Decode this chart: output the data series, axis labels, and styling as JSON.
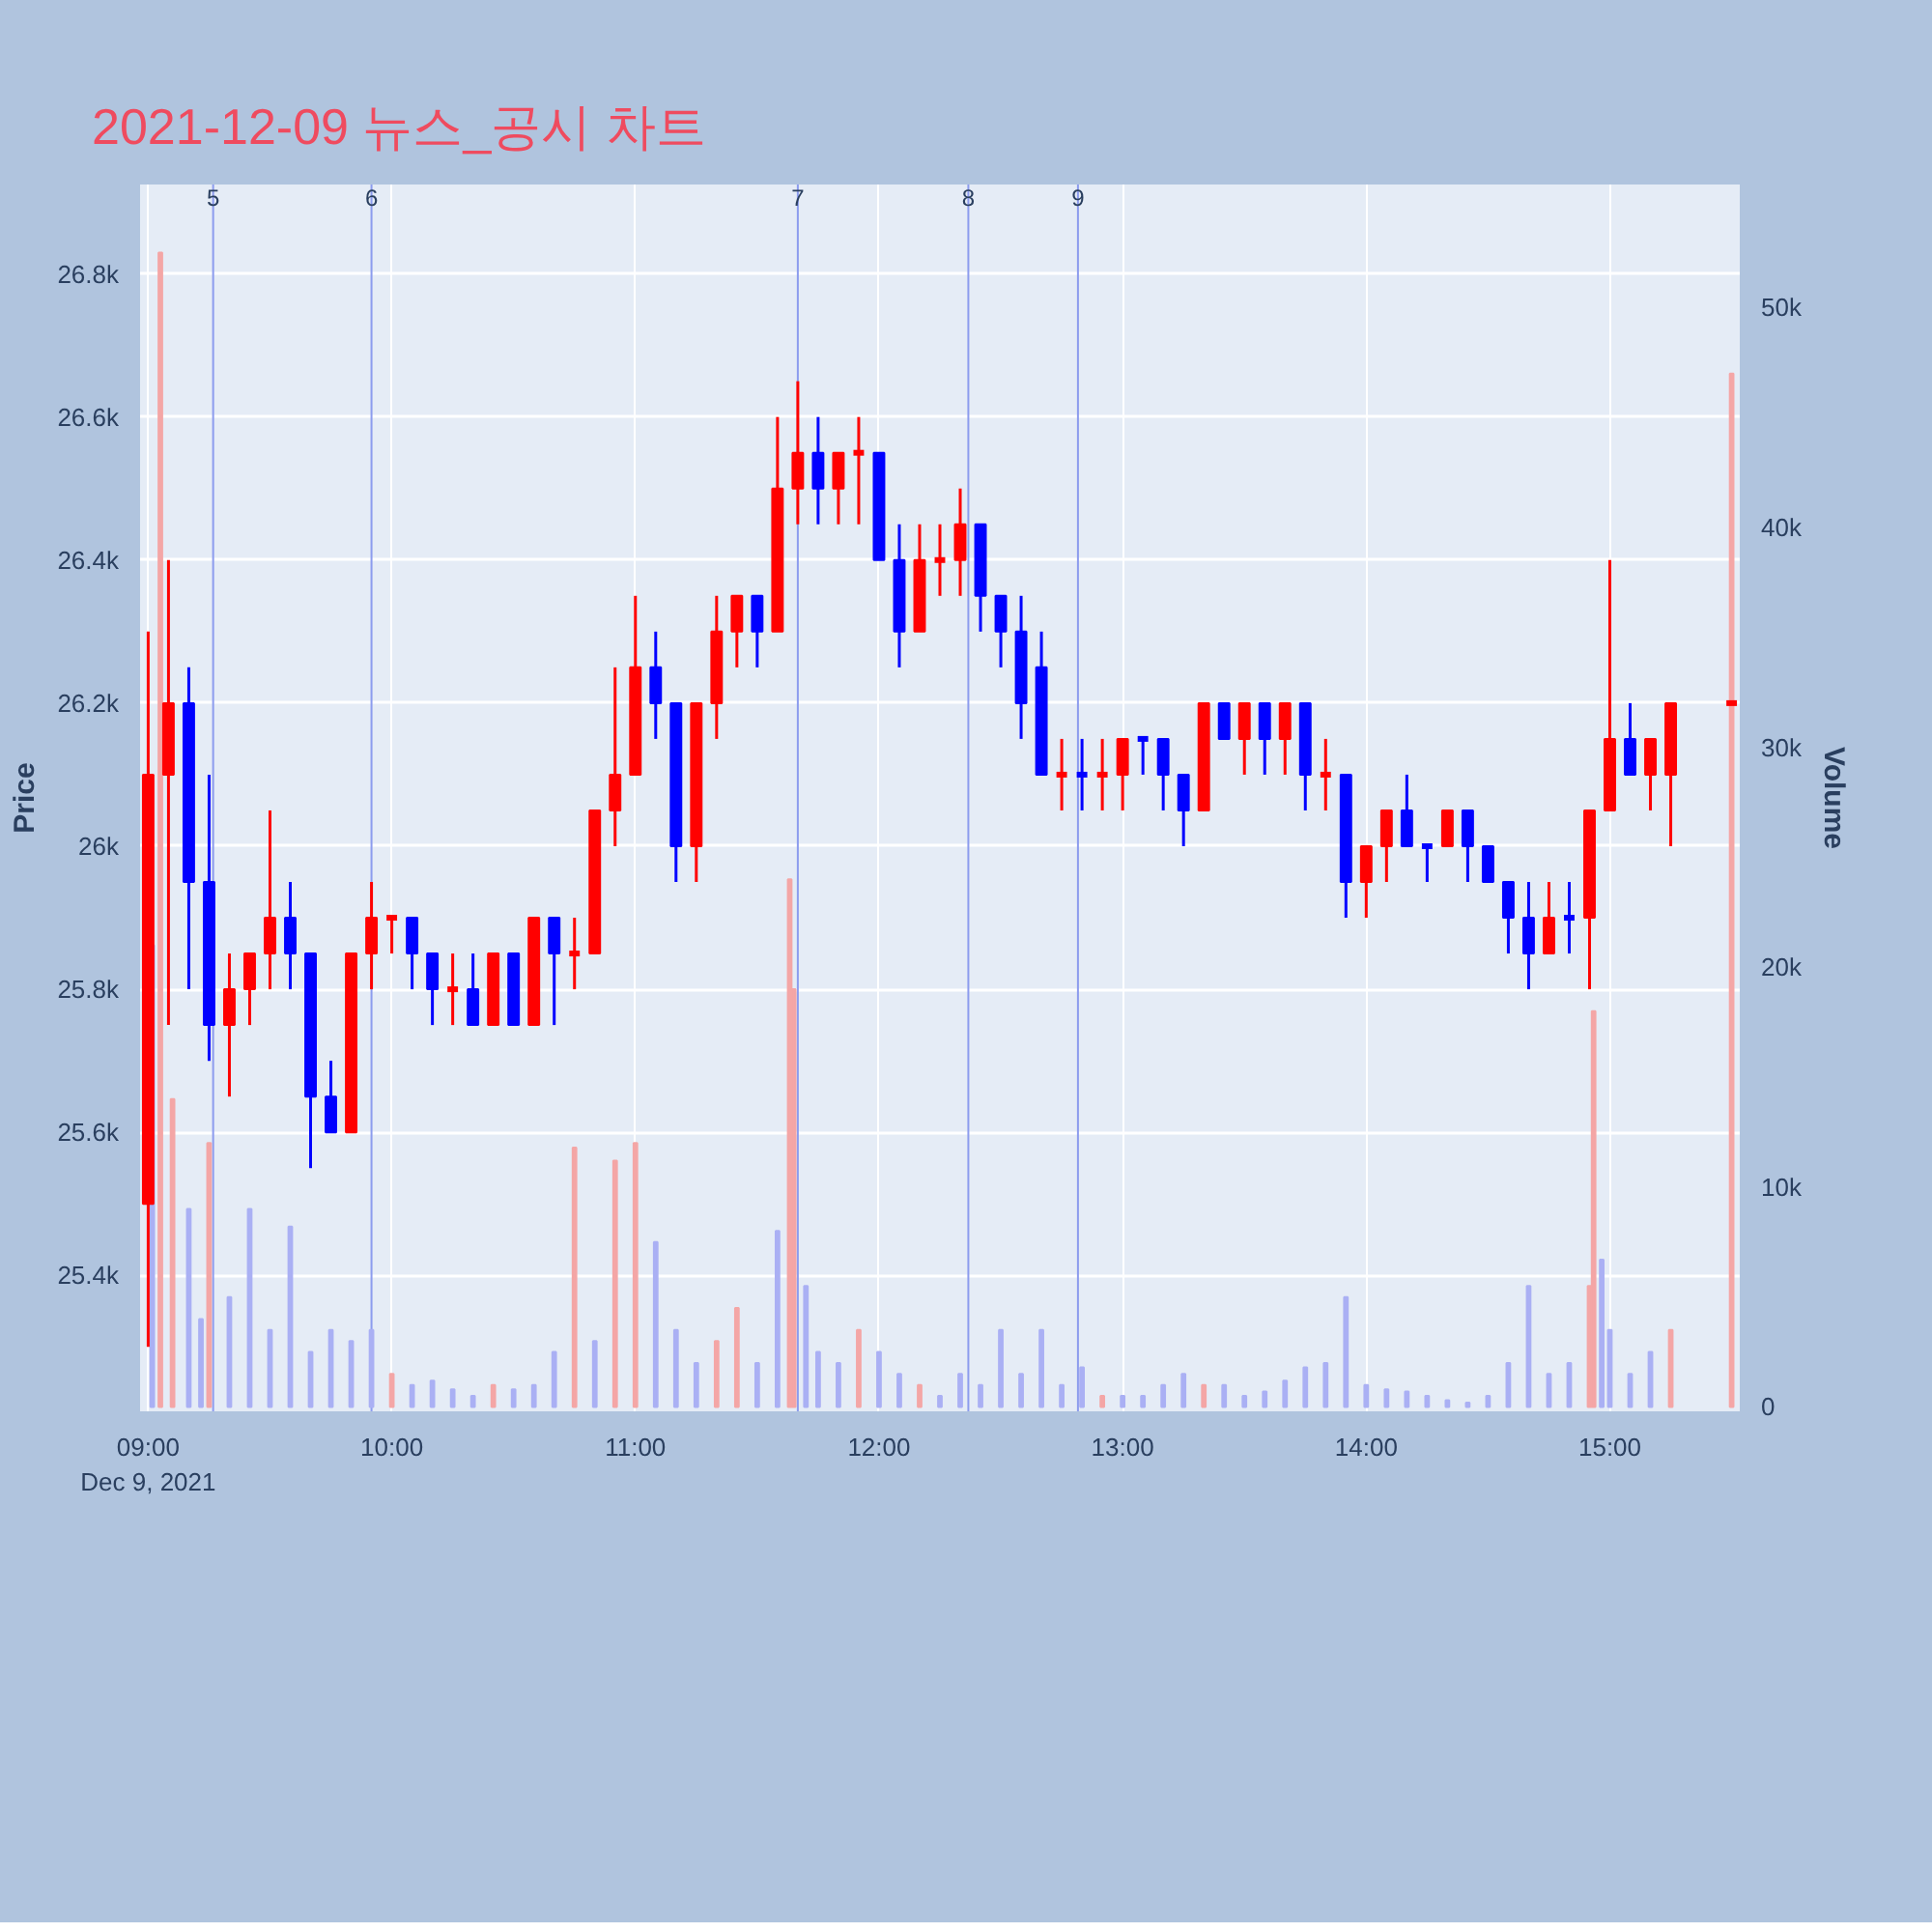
{
  "chart_data": {
    "type": "candlestick",
    "title": "2021-12-09 뉴스_공시 차트",
    "ylabel": "Price",
    "y2label": "Volume",
    "x": [
      "2021-12-09T09:00",
      "2021-12-09T09:05",
      "2021-12-09T09:10",
      "2021-12-09T09:15",
      "2021-12-09T09:20",
      "2021-12-09T09:25",
      "2021-12-09T09:30",
      "2021-12-09T09:35",
      "2021-12-09T09:40",
      "2021-12-09T09:45",
      "2021-12-09T09:50",
      "2021-12-09T09:55",
      "2021-12-09T10:00",
      "2021-12-09T10:05",
      "2021-12-09T10:10",
      "2021-12-09T10:15",
      "2021-12-09T10:20",
      "2021-12-09T10:25",
      "2021-12-09T10:30",
      "2021-12-09T10:35",
      "2021-12-09T10:40",
      "2021-12-09T10:45",
      "2021-12-09T10:50",
      "2021-12-09T10:55",
      "2021-12-09T11:00",
      "2021-12-09T11:05",
      "2021-12-09T11:10",
      "2021-12-09T11:15",
      "2021-12-09T11:20",
      "2021-12-09T11:25",
      "2021-12-09T11:30",
      "2021-12-09T11:35",
      "2021-12-09T11:40",
      "2021-12-09T11:45",
      "2021-12-09T11:50",
      "2021-12-09T11:55",
      "2021-12-09T12:00",
      "2021-12-09T12:05",
      "2021-12-09T12:10",
      "2021-12-09T12:15",
      "2021-12-09T12:20",
      "2021-12-09T12:25",
      "2021-12-09T12:30",
      "2021-12-09T12:35",
      "2021-12-09T12:40",
      "2021-12-09T12:45",
      "2021-12-09T12:50",
      "2021-12-09T12:55",
      "2021-12-09T13:00",
      "2021-12-09T13:05",
      "2021-12-09T13:10",
      "2021-12-09T13:15",
      "2021-12-09T13:20",
      "2021-12-09T13:25",
      "2021-12-09T13:30",
      "2021-12-09T13:35",
      "2021-12-09T13:40",
      "2021-12-09T13:45",
      "2021-12-09T13:50",
      "2021-12-09T13:55",
      "2021-12-09T14:00",
      "2021-12-09T14:05",
      "2021-12-09T14:10",
      "2021-12-09T14:15",
      "2021-12-09T14:20",
      "2021-12-09T14:25",
      "2021-12-09T14:30",
      "2021-12-09T14:35",
      "2021-12-09T14:40",
      "2021-12-09T14:45",
      "2021-12-09T14:50",
      "2021-12-09T14:55",
      "2021-12-09T15:00",
      "2021-12-09T15:05",
      "2021-12-09T15:10",
      "2021-12-09T15:15",
      "2021-12-09T15:30"
    ],
    "ohlc": [
      [
        25500,
        26300,
        25300,
        26100
      ],
      [
        26100,
        26400,
        25750,
        26200
      ],
      [
        26200,
        26250,
        25800,
        25950
      ],
      [
        25950,
        26100,
        25700,
        25750
      ],
      [
        25750,
        25850,
        25650,
        25800
      ],
      [
        25800,
        25850,
        25750,
        25850
      ],
      [
        25850,
        26050,
        25800,
        25900
      ],
      [
        25900,
        25950,
        25800,
        25850
      ],
      [
        25850,
        25850,
        25550,
        25650
      ],
      [
        25650,
        25700,
        25600,
        25600
      ],
      [
        25600,
        25850,
        25600,
        25850
      ],
      [
        25850,
        25950,
        25800,
        25900
      ],
      [
        25900,
        25900,
        25850,
        25900
      ],
      [
        25900,
        25900,
        25800,
        25850
      ],
      [
        25850,
        25850,
        25750,
        25800
      ],
      [
        25800,
        25850,
        25750,
        25800
      ],
      [
        25800,
        25850,
        25750,
        25750
      ],
      [
        25750,
        25850,
        25750,
        25850
      ],
      [
        25850,
        25850,
        25750,
        25750
      ],
      [
        25750,
        25900,
        25750,
        25900
      ],
      [
        25900,
        25900,
        25750,
        25850
      ],
      [
        25850,
        25900,
        25800,
        25850
      ],
      [
        25850,
        26050,
        25850,
        26050
      ],
      [
        26050,
        26250,
        26000,
        26100
      ],
      [
        26100,
        26350,
        26100,
        26250
      ],
      [
        26250,
        26300,
        26150,
        26200
      ],
      [
        26200,
        26200,
        25950,
        26000
      ],
      [
        26000,
        26200,
        25950,
        26200
      ],
      [
        26200,
        26350,
        26150,
        26300
      ],
      [
        26300,
        26350,
        26250,
        26350
      ],
      [
        26350,
        26350,
        26250,
        26300
      ],
      [
        26300,
        26600,
        26300,
        26500
      ],
      [
        26500,
        26650,
        26450,
        26550
      ],
      [
        26550,
        26600,
        26450,
        26500
      ],
      [
        26500,
        26550,
        26450,
        26550
      ],
      [
        26550,
        26600,
        26450,
        26550
      ],
      [
        26550,
        26550,
        26400,
        26400
      ],
      [
        26400,
        26450,
        26250,
        26300
      ],
      [
        26300,
        26450,
        26300,
        26400
      ],
      [
        26400,
        26450,
        26350,
        26400
      ],
      [
        26400,
        26500,
        26350,
        26450
      ],
      [
        26450,
        26450,
        26300,
        26350
      ],
      [
        26350,
        26350,
        26250,
        26300
      ],
      [
        26300,
        26350,
        26150,
        26200
      ],
      [
        26250,
        26300,
        26100,
        26100
      ],
      [
        26100,
        26150,
        26050,
        26100
      ],
      [
        26100,
        26150,
        26050,
        26100
      ],
      [
        26100,
        26150,
        26050,
        26100
      ],
      [
        26100,
        26150,
        26050,
        26150
      ],
      [
        26150,
        26150,
        26100,
        26150
      ],
      [
        26150,
        26150,
        26050,
        26100
      ],
      [
        26100,
        26100,
        26000,
        26050
      ],
      [
        26050,
        26200,
        26050,
        26200
      ],
      [
        26200,
        26200,
        26150,
        26150
      ],
      [
        26150,
        26200,
        26100,
        26200
      ],
      [
        26200,
        26200,
        26100,
        26150
      ],
      [
        26150,
        26200,
        26100,
        26200
      ],
      [
        26200,
        26200,
        26050,
        26100
      ],
      [
        26100,
        26150,
        26050,
        26100
      ],
      [
        26100,
        26100,
        25900,
        25950
      ],
      [
        25950,
        26000,
        25900,
        26000
      ],
      [
        26000,
        26050,
        25950,
        26050
      ],
      [
        26050,
        26100,
        26000,
        26000
      ],
      [
        26000,
        26000,
        25950,
        26000
      ],
      [
        26000,
        26050,
        26000,
        26050
      ],
      [
        26050,
        26050,
        25950,
        26000
      ],
      [
        26000,
        26000,
        25950,
        25950
      ],
      [
        25950,
        25950,
        25850,
        25900
      ],
      [
        25900,
        25950,
        25800,
        25850
      ],
      [
        25850,
        25950,
        25850,
        25900
      ],
      [
        25900,
        25950,
        25850,
        25900
      ],
      [
        25900,
        26050,
        25800,
        26050
      ],
      [
        26050,
        26400,
        26050,
        26150
      ],
      [
        26150,
        26200,
        26100,
        26100
      ],
      [
        26100,
        26150,
        26050,
        26150
      ],
      [
        26100,
        26200,
        26000,
        26200
      ],
      [
        26200,
        26200,
        26200,
        26200
      ]
    ],
    "colors": [
      "#ff0000",
      "#ff0000",
      "#0000ff",
      "#0000ff",
      "#ff0000",
      "#ff0000",
      "#ff0000",
      "#0000ff",
      "#0000ff",
      "#0000ff",
      "#ff0000",
      "#ff0000",
      "#ff0000",
      "#0000ff",
      "#0000ff",
      "#ff0000",
      "#0000ff",
      "#ff0000",
      "#0000ff",
      "#ff0000",
      "#0000ff",
      "#ff0000",
      "#ff0000",
      "#ff0000",
      "#ff0000",
      "#0000ff",
      "#0000ff",
      "#ff0000",
      "#ff0000",
      "#ff0000",
      "#0000ff",
      "#ff0000",
      "#ff0000",
      "#0000ff",
      "#ff0000",
      "#ff0000",
      "#0000ff",
      "#0000ff",
      "#ff0000",
      "#ff0000",
      "#ff0000",
      "#0000ff",
      "#0000ff",
      "#0000ff",
      "#0000ff",
      "#ff0000",
      "#0000ff",
      "#ff0000",
      "#ff0000",
      "#0000ff",
      "#0000ff",
      "#0000ff",
      "#ff0000",
      "#0000ff",
      "#ff0000",
      "#0000ff",
      "#ff0000",
      "#0000ff",
      "#ff0000",
      "#0000ff",
      "#ff0000",
      "#ff0000",
      "#0000ff",
      "#0000ff",
      "#ff0000",
      "#0000ff",
      "#0000ff",
      "#0000ff",
      "#0000ff",
      "#ff0000",
      "#0000ff",
      "#ff0000",
      "#ff0000",
      "#0000ff",
      "#ff0000",
      "#ff0000",
      "#ff0000"
    ],
    "series": [
      {
        "type": "bar",
        "axis": "y2",
        "x": [
          "2021-12-09T09:01",
          "2021-12-09T09:03",
          "2021-12-09T09:06",
          "2021-12-09T09:10",
          "2021-12-09T09:13",
          "2021-12-09T09:15",
          "2021-12-09T09:20",
          "2021-12-09T09:25",
          "2021-12-09T09:30",
          "2021-12-09T09:35",
          "2021-12-09T09:40",
          "2021-12-09T09:45",
          "2021-12-09T09:50",
          "2021-12-09T09:55",
          "2021-12-09T10:00",
          "2021-12-09T10:05",
          "2021-12-09T10:10",
          "2021-12-09T10:15",
          "2021-12-09T10:20",
          "2021-12-09T10:25",
          "2021-12-09T10:30",
          "2021-12-09T10:35",
          "2021-12-09T10:40",
          "2021-12-09T10:45",
          "2021-12-09T10:50",
          "2021-12-09T10:55",
          "2021-12-09T11:00",
          "2021-12-09T11:05",
          "2021-12-09T11:10",
          "2021-12-09T11:15",
          "2021-12-09T11:20",
          "2021-12-09T11:25",
          "2021-12-09T11:30",
          "2021-12-09T11:35",
          "2021-12-09T11:38",
          "2021-12-09T11:39",
          "2021-12-09T11:42",
          "2021-12-09T11:45",
          "2021-12-09T11:50",
          "2021-12-09T11:55",
          "2021-12-09T12:00",
          "2021-12-09T12:05",
          "2021-12-09T12:10",
          "2021-12-09T12:15",
          "2021-12-09T12:20",
          "2021-12-09T12:25",
          "2021-12-09T12:30",
          "2021-12-09T12:35",
          "2021-12-09T12:40",
          "2021-12-09T12:45",
          "2021-12-09T12:50",
          "2021-12-09T12:55",
          "2021-12-09T13:00",
          "2021-12-09T13:05",
          "2021-12-09T13:10",
          "2021-12-09T13:15",
          "2021-12-09T13:20",
          "2021-12-09T13:25",
          "2021-12-09T13:30",
          "2021-12-09T13:35",
          "2021-12-09T13:40",
          "2021-12-09T13:45",
          "2021-12-09T13:50",
          "2021-12-09T13:55",
          "2021-12-09T14:00",
          "2021-12-09T14:05",
          "2021-12-09T14:10",
          "2021-12-09T14:15",
          "2021-12-09T14:20",
          "2021-12-09T14:25",
          "2021-12-09T14:30",
          "2021-12-09T14:35",
          "2021-12-09T14:40",
          "2021-12-09T14:45",
          "2021-12-09T14:50",
          "2021-12-09T14:55",
          "2021-12-09T14:56",
          "2021-12-09T14:58",
          "2021-12-09T15:00",
          "2021-12-09T15:05",
          "2021-12-09T15:10",
          "2021-12-09T15:15",
          "2021-12-09T15:30"
        ],
        "values": [
          21000,
          52500,
          14000,
          9000,
          4000,
          12000,
          5000,
          9000,
          3500,
          8200,
          2500,
          3500,
          3000,
          3500,
          1500,
          1000,
          1200,
          800,
          500,
          1000,
          800,
          1000,
          2500,
          11800,
          3000,
          11200,
          12000,
          7500,
          3500,
          2000,
          3000,
          4500,
          2000,
          8000,
          24000,
          19000,
          5500,
          2500,
          2000,
          3500,
          2500,
          1500,
          1000,
          500,
          1500,
          1000,
          3500,
          1500,
          3500,
          1000,
          1800,
          500,
          500,
          500,
          1000,
          1500,
          1000,
          1000,
          500,
          700,
          1200,
          1800,
          2000,
          5000,
          1000,
          800,
          700,
          500,
          300,
          200,
          500,
          2000,
          5500,
          1500,
          2000,
          5500,
          18000,
          6700,
          3500,
          1500,
          2500,
          3500,
          47000
        ],
        "colors": [
          "#aab0f4",
          "#f4a6a6",
          "#f4a6a6",
          "#aab0f4",
          "#aab0f4",
          "#f4a6a6",
          "#aab0f4",
          "#aab0f4",
          "#aab0f4",
          "#aab0f4",
          "#aab0f4",
          "#aab0f4",
          "#aab0f4",
          "#aab0f4",
          "#f4a6a6",
          "#aab0f4",
          "#aab0f4",
          "#aab0f4",
          "#aab0f4",
          "#f4a6a6",
          "#aab0f4",
          "#aab0f4",
          "#aab0f4",
          "#f4a6a6",
          "#aab0f4",
          "#f4a6a6",
          "#f4a6a6",
          "#aab0f4",
          "#aab0f4",
          "#aab0f4",
          "#f4a6a6",
          "#f4a6a6",
          "#aab0f4",
          "#aab0f4",
          "#f4a6a6",
          "#f4a6a6",
          "#aab0f4",
          "#aab0f4",
          "#aab0f4",
          "#f4a6a6",
          "#aab0f4",
          "#aab0f4",
          "#f4a6a6",
          "#aab0f4",
          "#aab0f4",
          "#aab0f4",
          "#aab0f4",
          "#aab0f4",
          "#aab0f4",
          "#aab0f4",
          "#aab0f4",
          "#f4a6a6",
          "#aab0f4",
          "#aab0f4",
          "#aab0f4",
          "#aab0f4",
          "#f4a6a6",
          "#aab0f4",
          "#aab0f4",
          "#aab0f4",
          "#aab0f4",
          "#aab0f4",
          "#aab0f4",
          "#aab0f4",
          "#aab0f4",
          "#aab0f4",
          "#aab0f4",
          "#aab0f4",
          "#aab0f4",
          "#aab0f4",
          "#aab0f4",
          "#aab0f4",
          "#aab0f4",
          "#aab0f4",
          "#aab0f4",
          "#f4a6a6",
          "#f4a6a6",
          "#aab0f4",
          "#aab0f4",
          "#aab0f4",
          "#aab0f4",
          "#f4a6a6",
          "#f4a6a6"
        ]
      }
    ],
    "xlim": [
      "2021-12-09T08:58",
      "2021-12-09T15:32"
    ],
    "xticks": [
      {
        "value": "2021-12-09T09:00",
        "label": "09:00\nDec 9, 2021"
      },
      {
        "value": "2021-12-09T10:00",
        "label": "10:00"
      },
      {
        "value": "2021-12-09T11:00",
        "label": "11:00"
      },
      {
        "value": "2021-12-09T12:00",
        "label": "12:00"
      },
      {
        "value": "2021-12-09T13:00",
        "label": "13:00"
      },
      {
        "value": "2021-12-09T14:00",
        "label": "14:00"
      },
      {
        "value": "2021-12-09T15:00",
        "label": "15:00"
      }
    ],
    "ylim": [
      25210,
      26925
    ],
    "yticks": [
      {
        "value": 25400,
        "label": "25.4k"
      },
      {
        "value": 25600,
        "label": "25.6k"
      },
      {
        "value": 25800,
        "label": "25.8k"
      },
      {
        "value": 26000,
        "label": "26k"
      },
      {
        "value": 26200,
        "label": "26.2k"
      },
      {
        "value": 26400,
        "label": "26.4k"
      },
      {
        "value": 26600,
        "label": "26.6k"
      },
      {
        "value": 26800,
        "label": "26.8k"
      }
    ],
    "y2lim": [
      -200,
      55600
    ],
    "y2ticks": [
      0,
      {
        "value": 10000,
        "label": "10k"
      },
      {
        "value": 20000,
        "label": "20k"
      },
      {
        "value": 30000,
        "label": "30k"
      },
      {
        "value": 40000,
        "label": "40k"
      },
      {
        "value": 50000,
        "label": "50k"
      }
    ],
    "ref_lines": [
      {
        "axis": "x",
        "value": "2021-12-09T09:16",
        "label": "5"
      },
      {
        "axis": "x",
        "value": "2021-12-09T09:55",
        "label": "6"
      },
      {
        "axis": "x",
        "value": "2021-12-09T11:40",
        "label": "7"
      },
      {
        "axis": "x",
        "value": "2021-12-09T12:22",
        "label": "8"
      },
      {
        "axis": "x",
        "value": "2021-12-09T12:49",
        "label": "9"
      }
    ],
    "grid": true
  }
}
